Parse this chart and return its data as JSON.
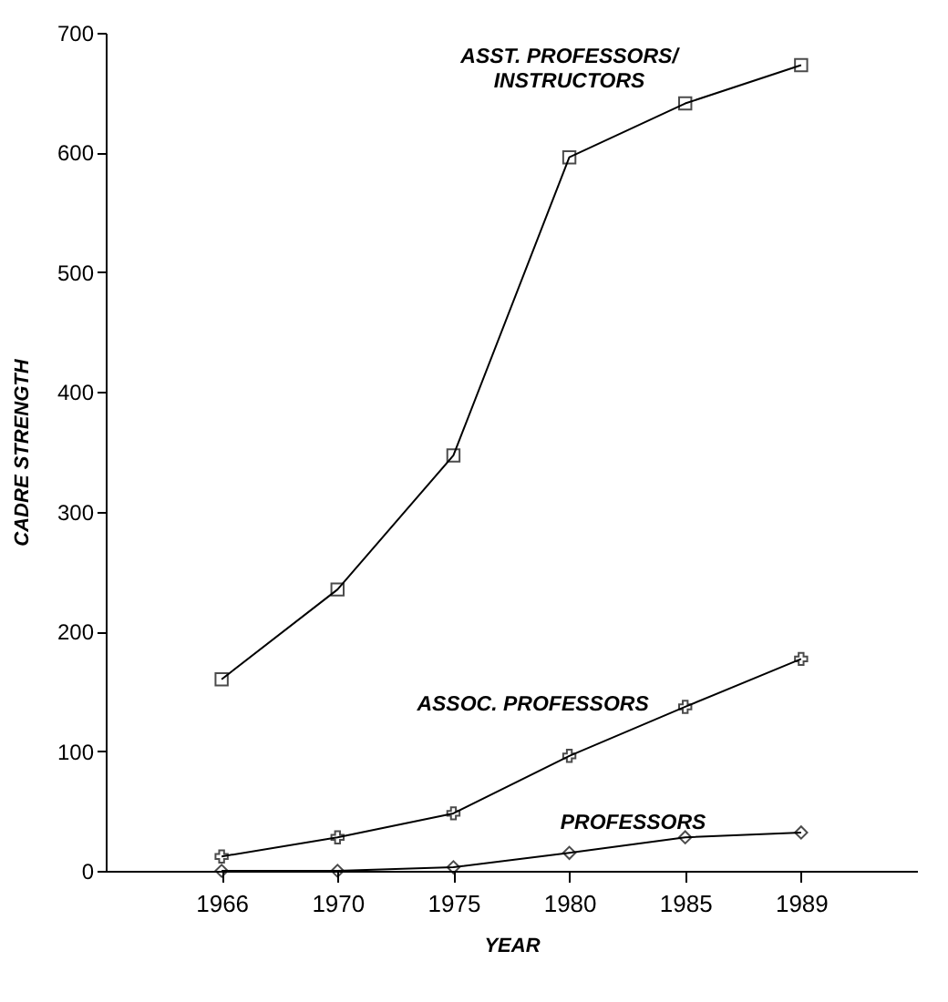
{
  "chart_data": {
    "type": "line",
    "xlabel": "YEAR",
    "ylabel": "CADRE STRENGTH",
    "categories": [
      "1966",
      "1970",
      "1975",
      "1980",
      "1985",
      "1989"
    ],
    "series": [
      {
        "name": "ASST. PROFESSORS/ INSTRUCTORS",
        "color": "#000000",
        "marker": "square",
        "values": [
          160,
          235,
          347,
          596,
          641,
          673
        ]
      },
      {
        "name": "ASSOC. PROFESSORS",
        "color": "#000000",
        "marker": "cross",
        "values": [
          12,
          28,
          48,
          96,
          137,
          177
        ]
      },
      {
        "name": "PROFESSORS",
        "color": "#000000",
        "marker": "diamond",
        "values": [
          0,
          0,
          3,
          15,
          28,
          32
        ]
      }
    ],
    "ylim": [
      0,
      700
    ],
    "yticks": [
      0,
      100,
      200,
      300,
      400,
      500,
      600,
      700
    ],
    "grid": false,
    "legend": false,
    "line_style": "solid"
  }
}
